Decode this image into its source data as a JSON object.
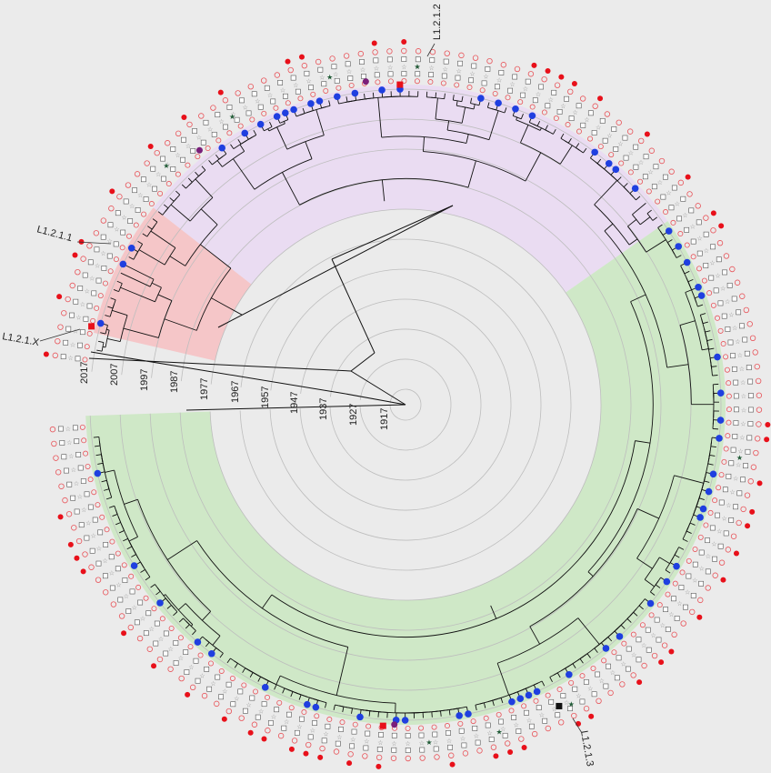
{
  "figure": {
    "time_axis_labels": [
      "2017",
      "2007",
      "1997",
      "1987",
      "1977",
      "1967",
      "1957",
      "1947",
      "1937",
      "1927",
      "1917"
    ],
    "clade_labels": [
      "L1.2.1.2",
      "L1.2.1.1",
      "L1.2.1.X",
      "L1.2.1.3"
    ],
    "colors": {
      "background": "#ebebeb",
      "ring_stroke": "#bdbdbd",
      "branch": "#111111",
      "clade_purple": "#eadcf2",
      "clade_red": "#f5c6c8",
      "clade_green": "#cfe8c7",
      "tip_marker": "#1f3fe0",
      "filled_red": "#e8101a",
      "open_red": "#e8545a",
      "purple_dot": "#7a1f7a",
      "dark_star": "#1f5a35",
      "black_square": "#111111"
    },
    "icons": [
      "tip-circle-icon",
      "open-circle-icon",
      "open-square-icon",
      "star-icon",
      "filled-red-circle-icon"
    ]
  }
}
